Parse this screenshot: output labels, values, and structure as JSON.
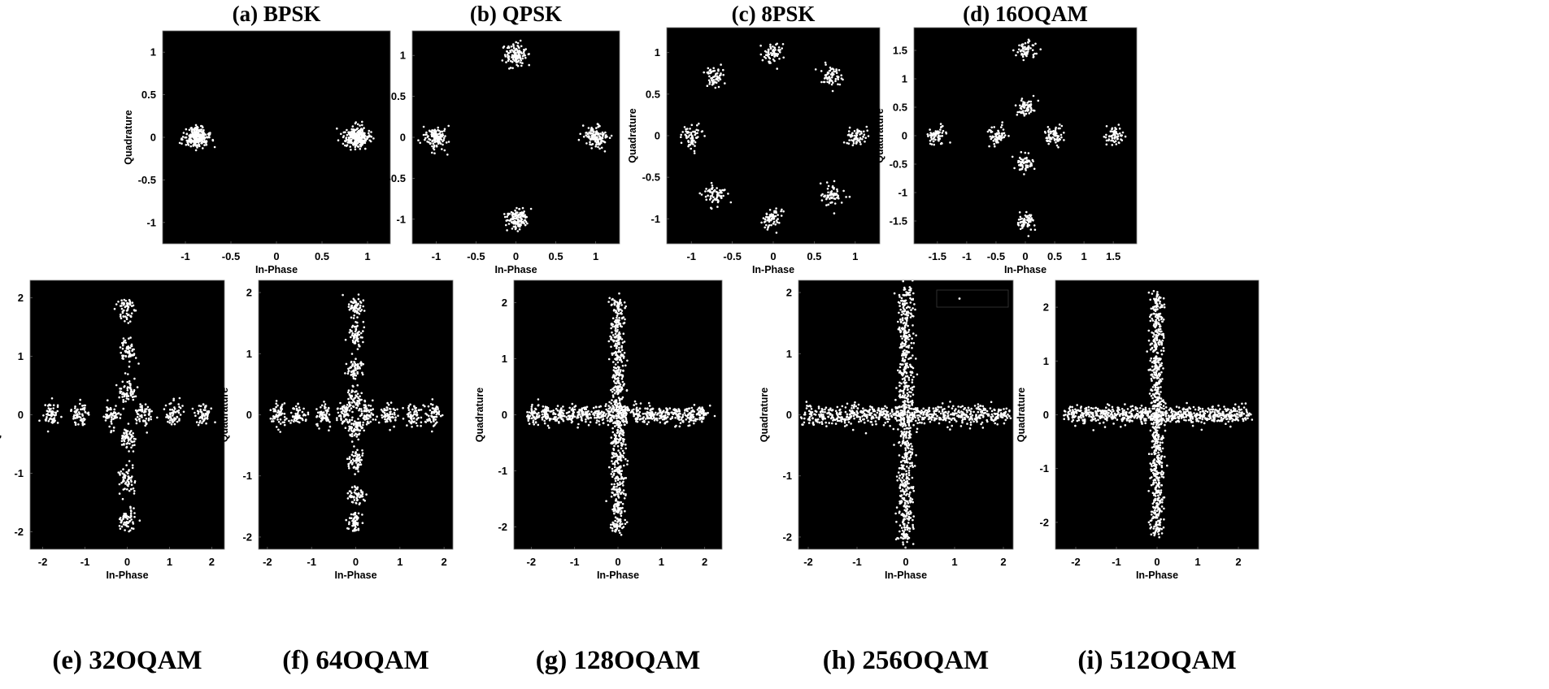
{
  "chart_data": [
    {
      "id": "a",
      "type": "scatter",
      "title": "(a) BPSK",
      "xlabel": "In-Phase",
      "ylabel": "Quadrature",
      "xlim": [
        -1.25,
        1.25
      ],
      "ylim": [
        -1.25,
        1.25
      ],
      "xticks": [
        "-1",
        "-0.5",
        "0",
        "0.5",
        "1"
      ],
      "yticks": [
        "-1",
        "-0.5",
        "0",
        "0.5",
        "1"
      ],
      "constellation": [
        [
          -0.88,
          0
        ],
        [
          0.88,
          0
        ]
      ],
      "spread": [
        0.07,
        0.06
      ],
      "grid": false,
      "background": "#000000",
      "marker_color": "#ffffff"
    },
    {
      "id": "b",
      "type": "scatter",
      "title": "(b) QPSK",
      "xlabel": "In-Phase",
      "ylabel": "Quadrature",
      "xlim": [
        -1.3,
        1.3
      ],
      "ylim": [
        -1.3,
        1.3
      ],
      "xticks": [
        "-1",
        "-0.5",
        "0",
        "0.5",
        "1"
      ],
      "yticks": [
        "-1",
        "-0.5",
        "0",
        "0.5",
        "1"
      ],
      "constellation": [
        [
          1,
          0
        ],
        [
          0,
          1
        ],
        [
          -1,
          0
        ],
        [
          0,
          -1
        ]
      ],
      "spread": [
        0.07,
        0.07
      ],
      "grid": false,
      "background": "#000000",
      "marker_color": "#ffffff"
    },
    {
      "id": "c",
      "type": "scatter",
      "title": "(c) 8PSK",
      "xlabel": "In-Phase",
      "ylabel": "Quadrature",
      "xlim": [
        -1.3,
        1.3
      ],
      "ylim": [
        -1.3,
        1.3
      ],
      "xticks": [
        "-1",
        "-0.5",
        "0",
        "0.5",
        "1"
      ],
      "yticks": [
        "-1",
        "-0.5",
        "0",
        "0.5",
        "1"
      ],
      "constellation": [
        [
          1,
          0
        ],
        [
          0.707,
          0.707
        ],
        [
          0,
          1
        ],
        [
          -0.707,
          0.707
        ],
        [
          -1,
          0
        ],
        [
          -0.707,
          -0.707
        ],
        [
          0,
          -1
        ],
        [
          0.707,
          -0.707
        ]
      ],
      "spread": [
        0.065,
        0.065
      ],
      "grid": false,
      "background": "#000000",
      "marker_color": "#ffffff"
    },
    {
      "id": "d",
      "type": "scatter",
      "title": "(d) 16OQAM",
      "xlabel": "In-Phase",
      "ylabel": "Quadrature",
      "xlim": [
        -1.9,
        1.9
      ],
      "ylim": [
        -1.9,
        1.9
      ],
      "xticks": [
        "-1.5",
        "-1",
        "-0.5",
        "0",
        "0.5",
        "1",
        "1.5"
      ],
      "yticks": [
        "-1.5",
        "-1",
        "-0.5",
        "0",
        "0.5",
        "1",
        "1.5"
      ],
      "axis_levels": [
        0.5,
        1.5
      ],
      "spread": [
        0.08,
        0.08
      ],
      "grid": false,
      "background": "#000000",
      "marker_color": "#ffffff"
    },
    {
      "id": "e",
      "type": "scatter",
      "title": "(e) 32OQAM",
      "xlabel": "In-Phase",
      "ylabel": "Quadrature",
      "xlim": [
        -2.3,
        2.3
      ],
      "ylim": [
        -2.3,
        2.3
      ],
      "xticks": [
        "-2",
        "-1",
        "0",
        "1",
        "2"
      ],
      "yticks": [
        "-2",
        "-1",
        "0",
        "1",
        "2"
      ],
      "axis_levels": [
        0.4,
        1.1,
        1.8
      ],
      "spread": [
        0.1,
        0.1
      ],
      "grid": false,
      "background": "#000000",
      "marker_color": "#ffffff"
    },
    {
      "id": "f",
      "type": "scatter",
      "title": "(f) 64OQAM",
      "xlabel": "In-Phase",
      "ylabel": "Quadrature",
      "xlim": [
        -2.2,
        2.2
      ],
      "ylim": [
        -2.2,
        2.2
      ],
      "xticks": [
        "-2",
        "-1",
        "0",
        "1",
        "2"
      ],
      "yticks": [
        "-2",
        "-1",
        "0",
        "1",
        "2"
      ],
      "axis_levels": [
        0.25,
        0.75,
        1.3,
        1.75
      ],
      "spread": [
        0.09,
        0.09
      ],
      "grid": false,
      "background": "#000000",
      "marker_color": "#ffffff"
    },
    {
      "id": "g",
      "type": "scatter",
      "title": "(g) 128OQAM",
      "xlabel": "In-Phase",
      "ylabel": "Quadrature",
      "xlim": [
        -2.4,
        2.4
      ],
      "ylim": [
        -2.4,
        2.4
      ],
      "xticks": [
        "-2",
        "-1",
        "0",
        "1",
        "2"
      ],
      "yticks": [
        "-2",
        "-1",
        "0",
        "1",
        "2"
      ],
      "axis_levels": [
        0.15,
        0.45,
        0.75,
        1.05,
        1.35,
        1.65,
        1.95
      ],
      "spread": [
        0.08,
        0.08
      ],
      "grid": false,
      "background": "#000000",
      "marker_color": "#ffffff"
    },
    {
      "id": "h",
      "type": "scatter",
      "title": "(h) 256OQAM",
      "xlabel": "In-Phase",
      "ylabel": "Quadrature",
      "xlim": [
        -2.2,
        2.2
      ],
      "ylim": [
        -2.2,
        2.2
      ],
      "xticks": [
        "-2",
        "-1",
        "0",
        "1",
        "2"
      ],
      "yticks": [
        "-2",
        "-1",
        "0",
        "1",
        "2"
      ],
      "axis_levels": [
        0.07,
        0.21,
        0.35,
        0.49,
        0.63,
        0.77,
        0.91,
        1.05,
        1.19,
        1.33,
        1.47,
        1.61,
        1.75,
        1.89,
        2.03
      ],
      "spread": [
        0.08,
        0.08
      ],
      "legend": "top-right",
      "grid": false,
      "background": "#000000",
      "marker_color": "#ffffff"
    },
    {
      "id": "i",
      "type": "scatter",
      "title": "(i) 512OQAM",
      "xlabel": "In-Phase",
      "ylabel": "Quadrature",
      "xlim": [
        -2.5,
        2.5
      ],
      "ylim": [
        -2.5,
        2.5
      ],
      "xticks": [
        "-2",
        "-1",
        "0",
        "1",
        "2"
      ],
      "yticks": [
        "-2",
        "-1",
        "0",
        "1",
        "2"
      ],
      "axis_levels": [
        0.07,
        0.21,
        0.35,
        0.49,
        0.63,
        0.77,
        0.91,
        1.05,
        1.19,
        1.33,
        1.47,
        1.61,
        1.75,
        1.89,
        2.03,
        2.17
      ],
      "spread": [
        0.08,
        0.08
      ],
      "grid": false,
      "background": "#000000",
      "marker_color": "#ffffff"
    }
  ]
}
